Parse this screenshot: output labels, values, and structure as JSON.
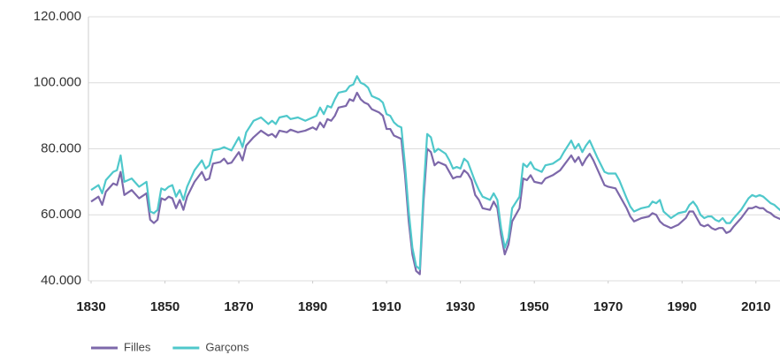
{
  "chart_data": {
    "type": "line",
    "x": [
      1830,
      1832,
      1833,
      1834,
      1836,
      1837,
      1838,
      1839,
      1841,
      1843,
      1845,
      1846,
      1847,
      1848,
      1849,
      1850,
      1851,
      1852,
      1853,
      1854,
      1855,
      1856,
      1858,
      1860,
      1861,
      1862,
      1863,
      1865,
      1866,
      1867,
      1868,
      1870,
      1871,
      1872,
      1874,
      1876,
      1878,
      1879,
      1880,
      1881,
      1883,
      1884,
      1886,
      1888,
      1890,
      1891,
      1892,
      1893,
      1894,
      1895,
      1896,
      1897,
      1899,
      1900,
      1901,
      1902,
      1903,
      1904,
      1905,
      1906,
      1908,
      1909,
      1910,
      1911,
      1912,
      1913,
      1914,
      1915,
      1916,
      1917,
      1918,
      1919,
      1920,
      1921,
      1922,
      1923,
      1924,
      1926,
      1927,
      1928,
      1929,
      1930,
      1931,
      1932,
      1933,
      1934,
      1935,
      1936,
      1938,
      1939,
      1940,
      1941,
      1942,
      1943,
      1944,
      1946,
      1947,
      1948,
      1949,
      1950,
      1952,
      1953,
      1955,
      1957,
      1958,
      1960,
      1961,
      1962,
      1963,
      1964,
      1965,
      1966,
      1967,
      1969,
      1970,
      1972,
      1973,
      1975,
      1976,
      1977,
      1979,
      1981,
      1982,
      1983,
      1984,
      1985,
      1987,
      1989,
      1991,
      1992,
      1993,
      1994,
      1995,
      1996,
      1997,
      1998,
      1999,
      2000,
      2001,
      2002,
      2003,
      2004,
      2006,
      2008,
      2009,
      2010,
      2011,
      2012,
      2013,
      2014,
      2015,
      2016,
      2017
    ],
    "series": [
      {
        "name": "Filles",
        "color": "#7d68aa",
        "values": [
          64000,
          65500,
          63000,
          67000,
          69500,
          69000,
          73000,
          66000,
          67500,
          65000,
          66500,
          58500,
          57500,
          58500,
          65000,
          64500,
          65500,
          65000,
          62000,
          64500,
          61500,
          65500,
          70000,
          73000,
          70500,
          71000,
          75500,
          76000,
          77000,
          75500,
          75800,
          79000,
          76500,
          81000,
          83500,
          85500,
          84000,
          84500,
          83500,
          85500,
          85000,
          85800,
          85000,
          85500,
          86500,
          85800,
          88000,
          86500,
          89000,
          88500,
          90000,
          92500,
          93000,
          95000,
          94500,
          97000,
          95000,
          94000,
          93500,
          92000,
          91000,
          90000,
          86000,
          86000,
          84000,
          83500,
          83000,
          72000,
          58000,
          48000,
          43000,
          42000,
          64000,
          80000,
          79000,
          75000,
          76000,
          75000,
          73000,
          71000,
          71500,
          71500,
          73500,
          72500,
          70500,
          66000,
          64500,
          62000,
          61500,
          64000,
          62000,
          54000,
          48000,
          51000,
          58000,
          62000,
          71000,
          70500,
          72000,
          70000,
          69500,
          71000,
          72000,
          73500,
          75000,
          78000,
          76000,
          77500,
          75000,
          77000,
          78500,
          76500,
          74000,
          69000,
          68500,
          68000,
          66000,
          62000,
          59500,
          58000,
          59000,
          59500,
          60500,
          60000,
          58000,
          57000,
          56000,
          57000,
          59000,
          61000,
          61000,
          59000,
          57000,
          56500,
          57000,
          56000,
          55500,
          56000,
          56000,
          54500,
          55000,
          56500,
          59000,
          62000,
          62000,
          62500,
          62000,
          62000,
          61000,
          60500,
          59500,
          59000,
          58500
        ]
      },
      {
        "name": "Garçons",
        "color": "#4fc8cb",
        "values": [
          67500,
          69000,
          66500,
          70500,
          73000,
          73500,
          78000,
          70000,
          71000,
          68500,
          70000,
          61000,
          60500,
          61500,
          68000,
          67500,
          68500,
          69000,
          65500,
          67500,
          64500,
          68500,
          73500,
          76500,
          74000,
          75000,
          79500,
          80000,
          80500,
          80000,
          79500,
          83500,
          80500,
          85000,
          88500,
          89500,
          87500,
          88500,
          87500,
          89500,
          90000,
          89000,
          89500,
          88500,
          89500,
          90000,
          92500,
          90500,
          93000,
          92500,
          95000,
          97000,
          97500,
          99000,
          99500,
          102000,
          100000,
          99500,
          98500,
          96000,
          95000,
          94000,
          90500,
          90000,
          88000,
          87000,
          86500,
          75000,
          61000,
          50000,
          44500,
          43500,
          67000,
          84500,
          83500,
          79000,
          80000,
          78500,
          76500,
          74000,
          74500,
          74000,
          77000,
          76000,
          73000,
          70000,
          67500,
          65500,
          64500,
          66500,
          64500,
          56000,
          50000,
          53000,
          62000,
          65500,
          75500,
          74500,
          76000,
          74000,
          73000,
          75000,
          75500,
          77000,
          79000,
          82500,
          80000,
          81500,
          79000,
          81000,
          82500,
          80000,
          77500,
          73000,
          72500,
          72500,
          70500,
          65000,
          62500,
          61000,
          62000,
          62500,
          64000,
          63500,
          64500,
          61000,
          59000,
          60500,
          61000,
          63000,
          64000,
          62500,
          60000,
          59000,
          59500,
          59500,
          58500,
          58000,
          59000,
          57500,
          57500,
          59000,
          61500,
          65000,
          66000,
          65500,
          66000,
          65500,
          64500,
          63500,
          63000,
          62000,
          61000
        ]
      }
    ],
    "xlim": [
      1830,
      2017
    ],
    "xticks": [
      1830,
      1850,
      1870,
      1890,
      1910,
      1930,
      1950,
      1970,
      1990,
      2010
    ],
    "ylim": [
      40000,
      120000
    ],
    "yticks": [
      {
        "value": 40000,
        "label": "40.000"
      },
      {
        "value": 60000,
        "label": "60.000"
      },
      {
        "value": 80000,
        "label": "80.000"
      },
      {
        "value": 100000,
        "label": "100.000"
      },
      {
        "value": 120000,
        "label": "120.000"
      }
    ],
    "grid": true
  }
}
